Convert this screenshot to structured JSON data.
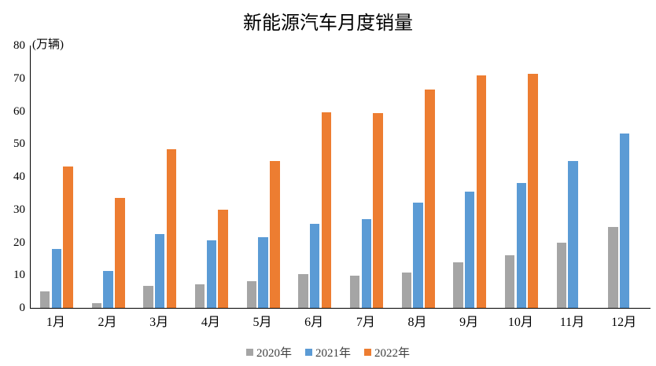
{
  "title": "新能源汽车月度销量",
  "chart_data": {
    "type": "bar",
    "title": "新能源汽车月度销量",
    "ylabel": "(万辆)",
    "xlabel": "",
    "ylim": [
      0,
      80
    ],
    "ytick_step": 10,
    "grid": false,
    "legend_position": "bottom",
    "categories": [
      "1月",
      "2月",
      "3月",
      "4月",
      "5月",
      "6月",
      "7月",
      "8月",
      "9月",
      "10月",
      "11月",
      "12月"
    ],
    "series": [
      {
        "name": "2020年",
        "color": "#a5a5a5",
        "values": [
          5.0,
          1.4,
          6.6,
          7.2,
          8.2,
          10.4,
          9.8,
          10.9,
          13.9,
          16.1,
          20.0,
          24.7
        ]
      },
      {
        "name": "2021年",
        "color": "#5b9bd5",
        "values": [
          17.9,
          11.3,
          22.5,
          20.7,
          21.6,
          25.7,
          27.1,
          32.0,
          35.5,
          38.2,
          44.9,
          53.1
        ]
      },
      {
        "name": "2022年",
        "color": "#ed7d31",
        "values": [
          43.1,
          33.6,
          48.4,
          29.9,
          44.8,
          59.6,
          59.3,
          66.6,
          70.9,
          71.3,
          null,
          null
        ]
      }
    ],
    "axis_color": "#000000",
    "text_color": "#000000",
    "legend_text_color": "#404040"
  }
}
